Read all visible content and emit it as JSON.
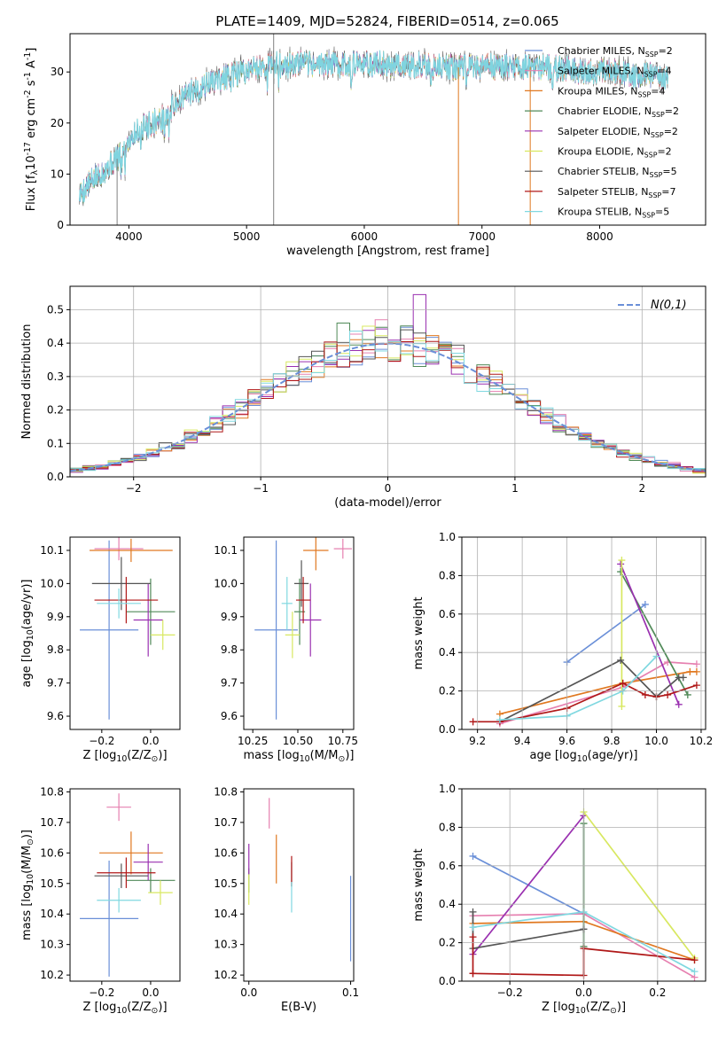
{
  "title": "PLATE=1409, MJD=52824, FIBERID=0514, z=0.065",
  "colors": {
    "Chabrier MILES": "#6a8fd8",
    "Salpeter MILES": "#e680b0",
    "Kroupa MILES": "#e07820",
    "Chabrier ELODIE": "#508a58",
    "Salpeter ELODIE": "#9a30b0",
    "Kroupa ELODIE": "#d8e860",
    "Chabrier STELIB": "#555555",
    "Salpeter STELIB": "#b01818",
    "Kroupa STELIB": "#80d8e0"
  },
  "chart_data": [
    {
      "id": "spectrum",
      "type": "line",
      "xlabel": "wavelength [Angstrom, rest frame]",
      "ylabel": "Flux [f$_\\lambda$10$^{-17}$ erg cm$^{-2}$ s$^{-1}$ A$^{-1}$]",
      "xlim": [
        3500,
        8900
      ],
      "ylim": [
        0,
        37.5
      ],
      "xticks": [
        4000,
        5000,
        6000,
        7000,
        8000
      ],
      "yticks": [
        0,
        10,
        20,
        30
      ],
      "legend_position": "right",
      "legend": [
        {
          "name": "Chabrier MILES",
          "n_ssp": "2"
        },
        {
          "name": "Salpeter MILES",
          "n_ssp": "4"
        },
        {
          "name": "Kroupa MILES",
          "n_ssp": "4"
        },
        {
          "name": "Chabrier ELODIE",
          "n_ssp": "2"
        },
        {
          "name": "Salpeter ELODIE",
          "n_ssp": "2"
        },
        {
          "name": "Kroupa ELODIE",
          "n_ssp": "2"
        },
        {
          "name": "Chabrier STELIB",
          "n_ssp": "5"
        },
        {
          "name": "Salpeter STELIB",
          "n_ssp": "7"
        },
        {
          "name": "Kroupa STELIB",
          "n_ssp": "5"
        }
      ],
      "continuum": {
        "x": [
          3580,
          3700,
          3800,
          3900,
          3950,
          4000,
          4100,
          4200,
          4300,
          4400,
          4500,
          4700,
          4900,
          5100,
          5300,
          5500,
          5700,
          5900,
          6100,
          6300,
          6500,
          6700,
          6900,
          7100,
          7300,
          7500,
          7700,
          7900,
          8100,
          8300,
          8500,
          8580
        ],
        "y": [
          6,
          9,
          11,
          13,
          14,
          17,
          19,
          20,
          21,
          24,
          25.5,
          28,
          29.5,
          31,
          31.5,
          31.5,
          31.5,
          31.5,
          31.5,
          31.5,
          31.2,
          31,
          30.8,
          31,
          31,
          31,
          30.5,
          30,
          30,
          29.5,
          29,
          28.5
        ]
      },
      "spikes": [
        {
          "x": 3900,
          "y_low": 0
        },
        {
          "x": 5230,
          "y_high": 37.5
        },
        {
          "x": 5230,
          "y_low": 0
        },
        {
          "x": 6800,
          "y_low": 0
        },
        {
          "x": 7410,
          "y_low": 0
        }
      ]
    },
    {
      "id": "residuals",
      "type": "histogram",
      "xlabel": "(data-model)/error",
      "ylabel": "Normed distribution",
      "xlim": [
        -2.5,
        2.5
      ],
      "ylim": [
        0,
        0.57
      ],
      "xticks": [
        -2,
        -1,
        0,
        1,
        2
      ],
      "yticks": [
        0.0,
        0.1,
        0.2,
        0.3,
        0.4,
        0.5
      ],
      "grid": true,
      "bin_width": 0.1,
      "bin_start": -2.5,
      "reference": {
        "name": "$\\mathcal{N}(0,1)$",
        "style": "dashed",
        "color": "#6a8fd8",
        "legend_position": "top-right"
      },
      "peaks": [
        {
          "x": 0.25,
          "y": 0.545,
          "series": "Salpeter ELODIE"
        },
        {
          "x": -0.35,
          "y": 0.46,
          "series": "Chabrier ELODIE"
        },
        {
          "x": -0.05,
          "y": 0.47,
          "series": "Salpeter MILES"
        }
      ]
    },
    {
      "id": "age_vs_Z",
      "type": "errorbar",
      "xlabel": "Z [log$_{10}$(Z/Z$_\\odot$)]",
      "ylabel": "age  [log$_{10}$(age/yr)]",
      "xlim": [
        -0.33,
        0.12
      ],
      "ylim": [
        9.56,
        10.14
      ],
      "xticks": [
        -0.2,
        0.0
      ],
      "yticks": [
        9.6,
        9.7,
        9.8,
        9.9,
        10.0,
        10.1
      ],
      "points": [
        {
          "series": "Chabrier MILES",
          "x": -0.17,
          "xerr": 0.12,
          "y": 9.86,
          "yerr": 0.27
        },
        {
          "series": "Salpeter MILES",
          "x": -0.13,
          "xerr": 0.1,
          "y": 10.105,
          "yerr": 0.035
        },
        {
          "series": "Kroupa MILES",
          "x": -0.08,
          "xerr": 0.17,
          "y": 10.1,
          "yerr": 0.035
        },
        {
          "series": "Chabrier ELODIE",
          "x": 0.0,
          "xerr": 0.1,
          "y": 9.915,
          "yerr": 0.1
        },
        {
          "series": "Salpeter ELODIE",
          "x": -0.01,
          "xerr": 0.06,
          "y": 9.89,
          "yerr": 0.11
        },
        {
          "series": "Kroupa ELODIE",
          "x": 0.05,
          "xerr": 0.05,
          "y": 9.845,
          "yerr": 0.045
        },
        {
          "series": "Chabrier STELIB",
          "x": -0.12,
          "xerr": 0.12,
          "y": 10.0,
          "yerr": 0.08
        },
        {
          "series": "Salpeter STELIB",
          "x": -0.1,
          "xerr": 0.13,
          "y": 9.95,
          "yerr": 0.07
        },
        {
          "series": "Kroupa STELIB",
          "x": -0.13,
          "xerr": 0.09,
          "y": 9.94,
          "yerr": 0.045
        }
      ]
    },
    {
      "id": "age_vs_mass",
      "type": "errorbar",
      "xlabel": "mass [log$_{10}$(M/M$_\\odot$)]",
      "ylabel": "",
      "xlim": [
        10.2,
        10.81
      ],
      "ylim": [
        9.56,
        10.14
      ],
      "xticks": [
        10.25,
        10.5,
        10.75
      ],
      "yticks": [
        9.6,
        9.7,
        9.8,
        9.9,
        10.0,
        10.1
      ],
      "points": [
        {
          "series": "Chabrier MILES",
          "x": 10.38,
          "xerr": 0.12,
          "y": 9.86,
          "yerr": 0.27
        },
        {
          "series": "Salpeter MILES",
          "x": 10.75,
          "xerr": 0.05,
          "y": 10.105,
          "yerr": 0.03
        },
        {
          "series": "Kroupa MILES",
          "x": 10.6,
          "xerr": 0.07,
          "y": 10.1,
          "yerr": 0.06
        },
        {
          "series": "Chabrier ELODIE",
          "x": 10.51,
          "xerr": 0.03,
          "y": 9.915,
          "yerr": 0.1
        },
        {
          "series": "Salpeter ELODIE",
          "x": 10.57,
          "xerr": 0.06,
          "y": 9.89,
          "yerr": 0.11
        },
        {
          "series": "Kroupa ELODIE",
          "x": 10.47,
          "xerr": 0.04,
          "y": 9.845,
          "yerr": 0.07
        },
        {
          "series": "Chabrier STELIB",
          "x": 10.52,
          "xerr": 0.04,
          "y": 10.0,
          "yerr": 0.07
        },
        {
          "series": "Salpeter STELIB",
          "x": 10.53,
          "xerr": 0.04,
          "y": 9.95,
          "yerr": 0.07
        },
        {
          "series": "Kroupa STELIB",
          "x": 10.44,
          "xerr": 0.03,
          "y": 9.94,
          "yerr": 0.08
        }
      ]
    },
    {
      "id": "mass_weight_vs_age",
      "type": "line",
      "xlabel": "age  [log$_{10}$(age/yr)]",
      "ylabel": "mass weight",
      "xlim": [
        9.13,
        10.22
      ],
      "ylim": [
        0,
        1.0
      ],
      "xticks": [
        9.2,
        9.4,
        9.6,
        9.8,
        10.0,
        10.2
      ],
      "yticks": [
        0.0,
        0.2,
        0.4,
        0.6,
        0.8,
        1.0
      ],
      "grid": true,
      "series": [
        {
          "name": "Chabrier MILES",
          "x": [
            9.6,
            9.95
          ],
          "y": [
            0.35,
            0.65
          ]
        },
        {
          "name": "Salpeter MILES",
          "x": [
            9.3,
            9.85,
            10.05,
            10.18
          ],
          "y": [
            0.03,
            0.22,
            0.35,
            0.34
          ]
        },
        {
          "name": "Kroupa MILES",
          "x": [
            9.3,
            9.85,
            10.15,
            10.18
          ],
          "y": [
            0.08,
            0.24,
            0.3,
            0.3
          ]
        },
        {
          "name": "Chabrier ELODIE",
          "x": [
            9.84,
            10.14
          ],
          "y": [
            0.82,
            0.18
          ]
        },
        {
          "name": "Salpeter ELODIE",
          "x": [
            9.84,
            10.1
          ],
          "y": [
            0.86,
            0.13
          ]
        },
        {
          "name": "Kroupa ELODIE",
          "x": [
            9.845,
            9.845
          ],
          "y": [
            0.88,
            0.12
          ]
        },
        {
          "name": "Chabrier STELIB",
          "x": [
            9.3,
            9.84,
            10.0,
            10.1,
            10.12
          ],
          "y": [
            0.04,
            0.36,
            0.17,
            0.27,
            0.27
          ]
        },
        {
          "name": "Salpeter STELIB",
          "x": [
            9.18,
            9.3,
            9.6,
            9.85,
            9.95,
            10.0,
            10.05,
            10.18
          ],
          "y": [
            0.04,
            0.04,
            0.11,
            0.24,
            0.18,
            0.17,
            0.18,
            0.23
          ]
        },
        {
          "name": "Kroupa STELIB",
          "x": [
            9.3,
            9.6,
            9.85,
            10.0
          ],
          "y": [
            0.05,
            0.07,
            0.2,
            0.38
          ]
        }
      ]
    },
    {
      "id": "mass_vs_Z",
      "type": "errorbar",
      "xlabel": "Z [log$_{10}$(Z/Z$_\\odot$)]",
      "ylabel": "mass [log$_{10}$(M/M$_\\odot$)]",
      "xlim": [
        -0.33,
        0.12
      ],
      "ylim": [
        10.18,
        10.81
      ],
      "xticks": [
        -0.2,
        0.0
      ],
      "yticks": [
        10.2,
        10.3,
        10.4,
        10.5,
        10.6,
        10.7,
        10.8
      ],
      "points": [
        {
          "series": "Chabrier MILES",
          "x": -0.17,
          "xerr": 0.12,
          "y": 10.385,
          "yerr": 0.19
        },
        {
          "series": "Salpeter MILES",
          "x": -0.13,
          "xerr": 0.05,
          "y": 10.75,
          "yerr": 0.045
        },
        {
          "series": "Kroupa MILES",
          "x": -0.08,
          "xerr": 0.13,
          "y": 10.6,
          "yerr": 0.07
        },
        {
          "series": "Chabrier ELODIE",
          "x": 0.0,
          "xerr": 0.1,
          "y": 10.51,
          "yerr": 0.04
        },
        {
          "series": "Salpeter ELODIE",
          "x": -0.01,
          "xerr": 0.06,
          "y": 10.57,
          "yerr": 0.06
        },
        {
          "series": "Kroupa ELODIE",
          "x": 0.04,
          "xerr": 0.05,
          "y": 10.47,
          "yerr": 0.04
        },
        {
          "series": "Chabrier STELIB",
          "x": -0.12,
          "xerr": 0.11,
          "y": 10.525,
          "yerr": 0.04
        },
        {
          "series": "Salpeter STELIB",
          "x": -0.1,
          "xerr": 0.12,
          "y": 10.535,
          "yerr": 0.05
        },
        {
          "series": "Kroupa STELIB",
          "x": -0.13,
          "xerr": 0.09,
          "y": 10.445,
          "yerr": 0.04
        }
      ]
    },
    {
      "id": "mass_vs_ebv",
      "type": "errorbar",
      "xlabel": "E(B-V)",
      "ylabel": "",
      "xlim": [
        -0.005,
        0.103
      ],
      "ylim": [
        10.18,
        10.81
      ],
      "xticks": [
        0.0,
        0.1
      ],
      "yticks": [
        10.2,
        10.3,
        10.4,
        10.5,
        10.6,
        10.7,
        10.8
      ],
      "points": [
        {
          "series": "Chabrier MILES",
          "x": 0.1,
          "xerr": 0,
          "y": 10.385,
          "yerr": 0.14
        },
        {
          "series": "Salpeter MILES",
          "x": 0.02,
          "xerr": 0,
          "y": 10.73,
          "yerr": 0.05
        },
        {
          "series": "Kroupa MILES",
          "x": 0.027,
          "xerr": 0,
          "y": 10.58,
          "yerr": 0.08
        },
        {
          "series": "Chabrier ELODIE",
          "x": 0.0,
          "xerr": 0,
          "y": 10.51,
          "yerr": 0.04
        },
        {
          "series": "Salpeter ELODIE",
          "x": 0.0,
          "xerr": 0,
          "y": 10.58,
          "yerr": 0.05
        },
        {
          "series": "Kroupa ELODIE",
          "x": 0.0,
          "xerr": 0,
          "y": 10.48,
          "yerr": 0.05
        },
        {
          "series": "Chabrier STELIB",
          "x": 0.042,
          "xerr": 0,
          "y": 10.53,
          "yerr": 0.04
        },
        {
          "series": "Salpeter STELIB",
          "x": 0.042,
          "xerr": 0,
          "y": 10.54,
          "yerr": 0.05
        },
        {
          "series": "Kroupa STELIB",
          "x": 0.042,
          "xerr": 0,
          "y": 10.455,
          "yerr": 0.05
        }
      ]
    },
    {
      "id": "mass_weight_vs_Z",
      "type": "line",
      "xlabel": "Z [log$_{10}$(Z/Z$_\\odot$)]",
      "ylabel": "mass weight",
      "xlim": [
        -0.33,
        0.33
      ],
      "ylim": [
        0,
        1.0
      ],
      "xticks": [
        -0.2,
        0.0,
        0.2
      ],
      "yticks": [
        0.0,
        0.2,
        0.4,
        0.6,
        0.8,
        1.0
      ],
      "grid": true,
      "series": [
        {
          "name": "Chabrier MILES",
          "x": [
            -0.3,
            0.0
          ],
          "y": [
            0.65,
            0.35
          ]
        },
        {
          "name": "Salpeter MILES",
          "x": [
            -0.3,
            0.0,
            0.3
          ],
          "y": [
            0.34,
            0.35,
            0.02
          ]
        },
        {
          "name": "Kroupa MILES",
          "x": [
            -0.3,
            0.0,
            0.3
          ],
          "y": [
            0.3,
            0.31,
            0.11
          ]
        },
        {
          "name": "Chabrier ELODIE",
          "x": [
            0.0,
            0.0
          ],
          "y": [
            0.82,
            0.18
          ]
        },
        {
          "name": "Salpeter ELODIE",
          "x": [
            -0.3,
            0.0,
            0.0
          ],
          "y": [
            0.14,
            0.86,
            0.86
          ]
        },
        {
          "name": "Kroupa ELODIE",
          "x": [
            0.0,
            0.3
          ],
          "y": [
            0.88,
            0.12
          ]
        },
        {
          "name": "Chabrier STELIB",
          "x": [
            -0.3,
            -0.3,
            0.0,
            0.0
          ],
          "y": [
            0.36,
            0.17,
            0.27,
            0.27
          ]
        },
        {
          "name": "Salpeter STELIB",
          "x": [
            -0.3,
            -0.3,
            -0.3,
            0.0,
            0.0,
            0.3
          ],
          "y": [
            0.23,
            0.04,
            0.04,
            0.03,
            0.17,
            0.11
          ]
        },
        {
          "name": "Kroupa STELIB",
          "x": [
            -0.3,
            0.0,
            0.3
          ],
          "y": [
            0.28,
            0.36,
            0.05
          ]
        }
      ]
    }
  ]
}
